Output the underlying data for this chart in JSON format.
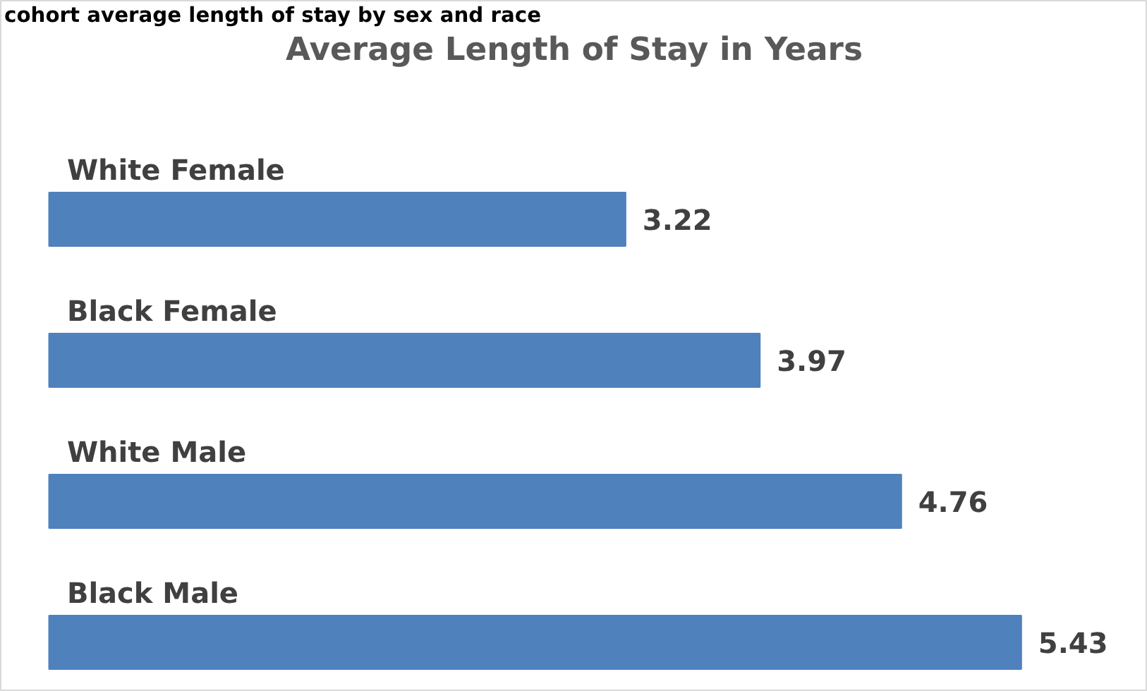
{
  "chart_data": {
    "type": "bar",
    "orientation": "horizontal",
    "title": "Average Length of Stay in Years",
    "annotations": [
      "cohort average length of stay by sex and race"
    ],
    "categories": [
      "White Female",
      "Black Female",
      "White Male",
      "Black Male"
    ],
    "values": [
      3.22,
      3.97,
      4.76,
      5.43
    ],
    "color": "#4f81bd",
    "data_labels": true
  }
}
